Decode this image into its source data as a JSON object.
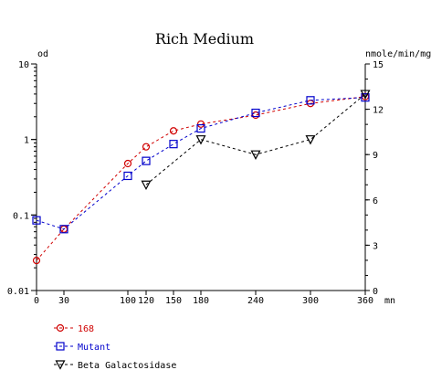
{
  "chart_data": {
    "type": "line",
    "title": "Rich Medium",
    "x": [
      0,
      30,
      100,
      120,
      150,
      180,
      240,
      300,
      360
    ],
    "x_ticks": [
      "0",
      "30",
      "100",
      "120",
      "150",
      "180",
      "240",
      "300",
      "360"
    ],
    "xlabel": "mn",
    "xlim": [
      0,
      360
    ],
    "y_left": {
      "label": "od",
      "scale": "log",
      "range": [
        0.01,
        10
      ],
      "ticks": [
        {
          "value": 0.01,
          "label": "0.01"
        },
        {
          "value": 0.1,
          "label": "0.1"
        },
        {
          "value": 1,
          "label": "1"
        },
        {
          "value": 10,
          "label": "10"
        }
      ]
    },
    "y_right": {
      "label": "nmole/min/mg",
      "scale": "linear",
      "range": [
        0,
        15
      ],
      "ticks": [
        {
          "value": 0,
          "label": "0"
        },
        {
          "value": 3,
          "label": "3"
        },
        {
          "value": 6,
          "label": "6"
        },
        {
          "value": 9,
          "label": "9"
        },
        {
          "value": 12,
          "label": "12"
        },
        {
          "value": 15,
          "label": "15"
        }
      ]
    },
    "grid": false,
    "legend_position": "bottom-left",
    "series": [
      {
        "name": "168",
        "axis": "left",
        "color": "#d00000",
        "marker": "circle",
        "points": [
          [
            0,
            0.025
          ],
          [
            30,
            0.065
          ],
          [
            100,
            0.48
          ],
          [
            120,
            0.8
          ],
          [
            150,
            1.3
          ],
          [
            180,
            1.6
          ],
          [
            240,
            2.1
          ],
          [
            300,
            3.0
          ],
          [
            360,
            3.7
          ]
        ]
      },
      {
        "name": "Mutant",
        "axis": "left",
        "color": "#0000cc",
        "marker": "square",
        "points": [
          [
            0,
            0.085
          ],
          [
            30,
            0.065
          ],
          [
            100,
            0.33
          ],
          [
            120,
            0.52
          ],
          [
            150,
            0.87
          ],
          [
            180,
            1.4
          ],
          [
            240,
            2.25
          ],
          [
            300,
            3.3
          ],
          [
            360,
            3.6
          ]
        ]
      },
      {
        "name": "Beta Galactosidase",
        "axis": "right",
        "color": "#000000",
        "marker": "triangle-down",
        "points": [
          [
            120,
            7
          ],
          [
            180,
            10
          ],
          [
            240,
            9
          ],
          [
            300,
            10
          ],
          [
            360,
            13
          ]
        ]
      }
    ]
  }
}
